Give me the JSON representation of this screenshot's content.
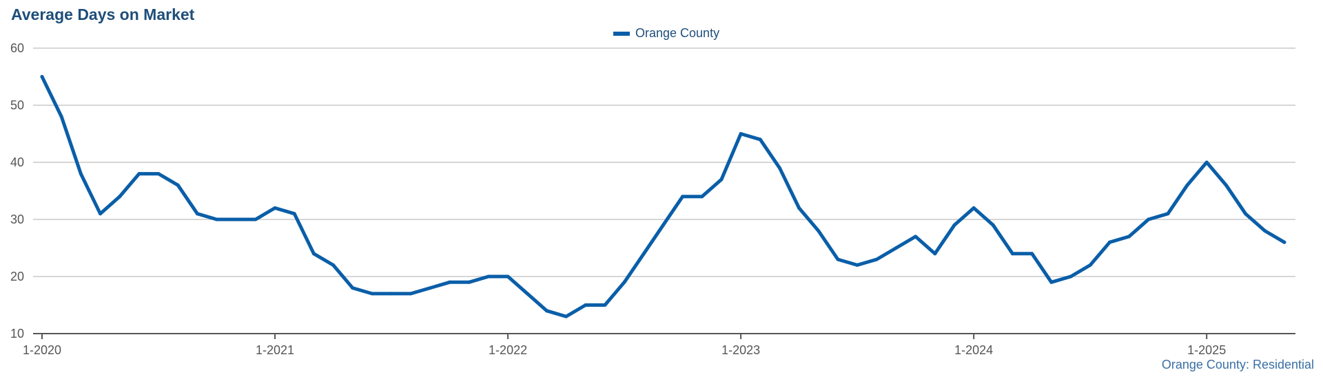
{
  "chart_data": {
    "type": "line",
    "title": "Average Days on Market",
    "xlabel": "",
    "ylabel": "",
    "ylim": [
      10,
      60
    ],
    "yticks": [
      10,
      20,
      30,
      40,
      50,
      60
    ],
    "xtick_labels": [
      "1-2020",
      "1-2021",
      "1-2022",
      "1-2023",
      "1-2024",
      "1-2025"
    ],
    "legend": "top-center",
    "grid": true,
    "source_note": "Orange County: Residential",
    "series": [
      {
        "name": "Orange County",
        "color": "#0a5ea8",
        "x": [
          "2020-01",
          "2020-02",
          "2020-03",
          "2020-04",
          "2020-05",
          "2020-06",
          "2020-07",
          "2020-08",
          "2020-09",
          "2020-10",
          "2020-11",
          "2020-12",
          "2021-01",
          "2021-02",
          "2021-03",
          "2021-04",
          "2021-05",
          "2021-06",
          "2021-07",
          "2021-08",
          "2021-09",
          "2021-10",
          "2021-11",
          "2021-12",
          "2022-01",
          "2022-02",
          "2022-03",
          "2022-04",
          "2022-05",
          "2022-06",
          "2022-07",
          "2022-08",
          "2022-09",
          "2022-10",
          "2022-11",
          "2022-12",
          "2023-01",
          "2023-02",
          "2023-03",
          "2023-04",
          "2023-05",
          "2023-06",
          "2023-07",
          "2023-08",
          "2023-09",
          "2023-10",
          "2023-11",
          "2023-12",
          "2024-01",
          "2024-02",
          "2024-03",
          "2024-04",
          "2024-05",
          "2024-06",
          "2024-07",
          "2024-08",
          "2024-09",
          "2024-10",
          "2024-11",
          "2024-12",
          "2025-01",
          "2025-02",
          "2025-03",
          "2025-04",
          "2025-05"
        ],
        "values": [
          55,
          48,
          38,
          31,
          34,
          38,
          38,
          36,
          31,
          30,
          30,
          30,
          32,
          31,
          24,
          22,
          18,
          17,
          17,
          17,
          18,
          19,
          19,
          20,
          20,
          17,
          14,
          13,
          15,
          15,
          19,
          24,
          29,
          34,
          34,
          37,
          45,
          44,
          39,
          32,
          28,
          23,
          22,
          23,
          25,
          27,
          24,
          29,
          32,
          29,
          24,
          24,
          19,
          20,
          22,
          26,
          27,
          30,
          31,
          36,
          40,
          36,
          31,
          28,
          26
        ]
      }
    ]
  }
}
